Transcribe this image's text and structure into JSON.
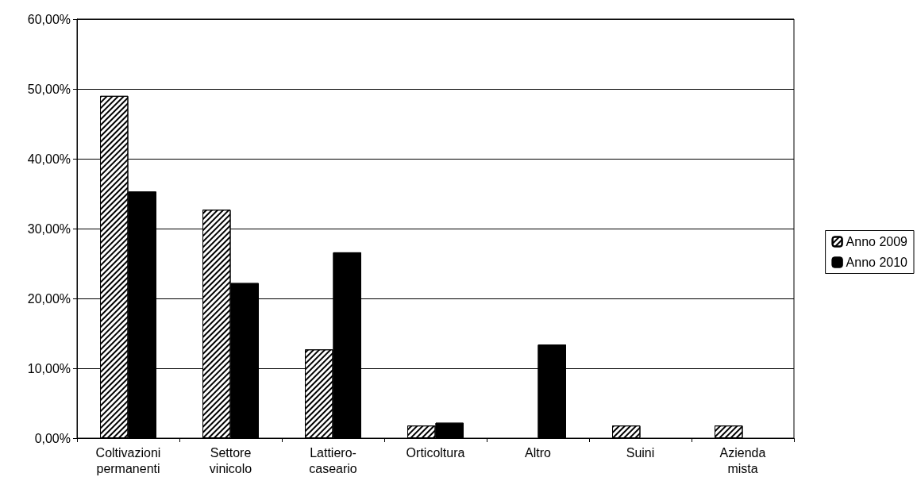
{
  "chart_data": {
    "type": "bar",
    "categories": [
      "Coltivazioni permanenti",
      "Settore vinicolo",
      "Lattiero-caseario",
      "Orticoltura",
      "Altro",
      "Suini",
      "Azienda mista"
    ],
    "series": [
      {
        "name": "Anno 2009",
        "color": "#ffffff",
        "values": [
          49.0,
          32.7,
          12.7,
          1.8,
          0,
          1.8,
          1.8
        ]
      },
      {
        "name": "Anno 2010",
        "color": "#000000",
        "values": [
          35.3,
          22.2,
          26.6,
          2.2,
          13.4,
          0,
          0
        ]
      }
    ],
    "ylim": [
      0,
      60
    ],
    "yticks": [
      {
        "value": 0,
        "label": "0,00%"
      },
      {
        "value": 10,
        "label": "10,00%"
      },
      {
        "value": 20,
        "label": "20,00%"
      },
      {
        "value": 30,
        "label": "30,00%"
      },
      {
        "value": 40,
        "label": "40,00%"
      },
      {
        "value": 50,
        "label": "50,00%"
      },
      {
        "value": 60,
        "label": "60,00%"
      }
    ],
    "grid": "y",
    "legend": "right"
  }
}
